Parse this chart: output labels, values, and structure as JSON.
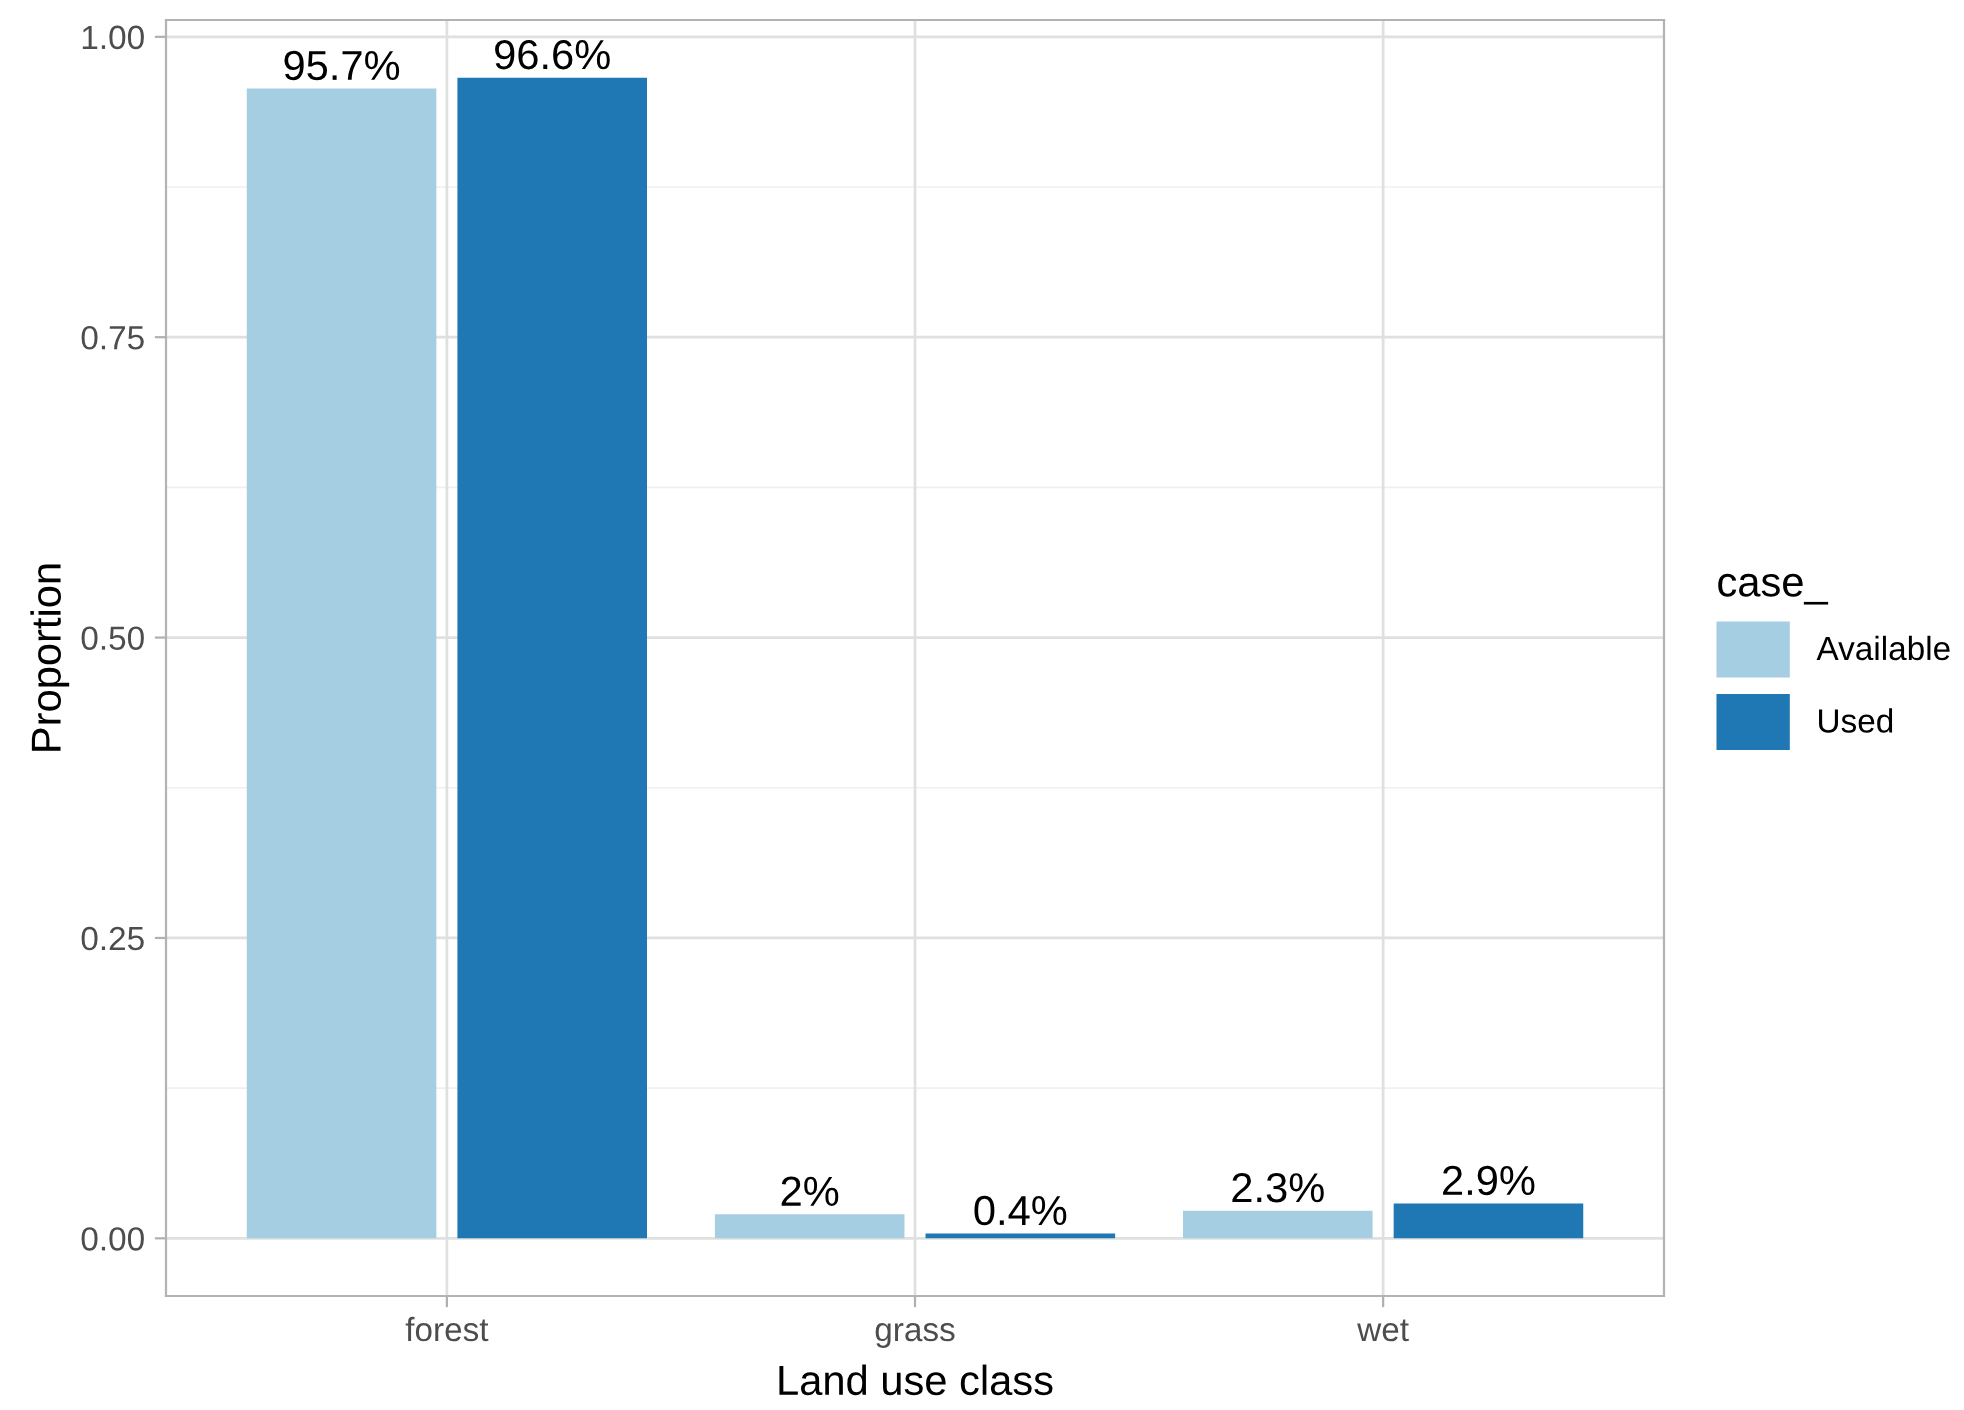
{
  "chart_data": {
    "type": "bar",
    "xlabel": "Land use class",
    "ylabel": "Proportion",
    "legend_title": "case_",
    "categories": [
      "forest",
      "grass",
      "wet"
    ],
    "series": [
      {
        "name": "Available",
        "color": "#a6cee3",
        "values": [
          0.957,
          0.02,
          0.023
        ],
        "value_labels": [
          "95.7%",
          "2%",
          "2.3%"
        ]
      },
      {
        "name": "Used",
        "color": "#1f78b4",
        "values": [
          0.966,
          0.004,
          0.029
        ],
        "value_labels": [
          "96.6%",
          "0.4%",
          "2.9%"
        ]
      }
    ],
    "ylim": [
      -0.048,
      1.014
    ],
    "yticks": [
      {
        "value": 0,
        "label": "0.00"
      },
      {
        "value": 0.25,
        "label": "0.25"
      },
      {
        "value": 0.5,
        "label": "0.50"
      },
      {
        "value": 0.75,
        "label": "0.75"
      },
      {
        "value": 1,
        "label": "1.00"
      }
    ],
    "grid": true,
    "legend": "right"
  }
}
